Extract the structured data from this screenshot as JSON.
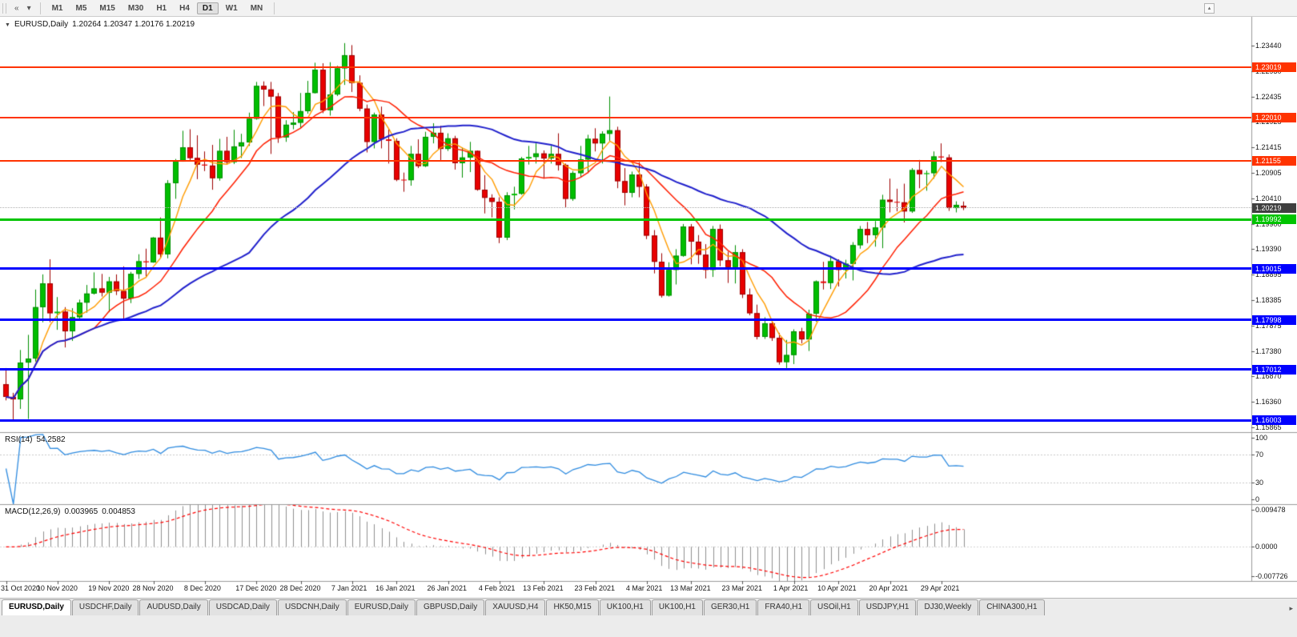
{
  "toolbar": {
    "left_icons": [
      {
        "name": "charts-toolbar-icon",
        "glyph": "«"
      },
      {
        "name": "chart-type-dropdown-icon",
        "glyph": "▾"
      }
    ],
    "timeframes": [
      {
        "label": "M1"
      },
      {
        "label": "M5"
      },
      {
        "label": "M15"
      },
      {
        "label": "M30"
      },
      {
        "label": "H1"
      },
      {
        "label": "H4"
      },
      {
        "label": "D1",
        "active": true
      },
      {
        "label": "W1"
      },
      {
        "label": "MN"
      }
    ],
    "overflow_glyph": "▴"
  },
  "chart": {
    "title_caret_glyph": "▼",
    "symbol_title": "EURUSD,Daily",
    "ohlc_text": "1.20264 1.20347 1.20176 1.20219",
    "price_axis_labels": [
      "1.23440",
      "1.22930",
      "1.22435",
      "1.21925",
      "1.21415",
      "1.20905",
      "1.20410",
      "1.19900",
      "1.19390",
      "1.18895",
      "1.18385",
      "1.17875",
      "1.17380",
      "1.16870",
      "1.16360",
      "1.15865"
    ],
    "date_axis_labels": [
      {
        "label": "31 Oct 2020",
        "i": 0
      },
      {
        "label": "10 Nov 2020",
        "i": 7
      },
      {
        "label": "19 Nov 2020",
        "i": 14
      },
      {
        "label": "28 Nov 2020",
        "i": 20
      },
      {
        "label": "8 Dec 2020",
        "i": 27
      },
      {
        "label": "17 Dec 2020",
        "i": 34
      },
      {
        "label": "28 Dec 2020",
        "i": 40
      },
      {
        "label": "7 Jan 2021",
        "i": 47
      },
      {
        "label": "16 Jan 2021",
        "i": 53
      },
      {
        "label": "26 Jan 2021",
        "i": 60
      },
      {
        "label": "4 Feb 2021",
        "i": 67
      },
      {
        "label": "13 Feb 2021",
        "i": 73
      },
      {
        "label": "23 Feb 2021",
        "i": 80
      },
      {
        "label": "4 Mar 2021",
        "i": 87
      },
      {
        "label": "13 Mar 2021",
        "i": 93
      },
      {
        "label": "23 Mar 2021",
        "i": 100
      },
      {
        "label": "1 Apr 2021",
        "i": 107
      },
      {
        "label": "10 Apr 2021",
        "i": 113
      },
      {
        "label": "20 Apr 2021",
        "i": 120
      },
      {
        "label": "29 Apr 2021",
        "i": 127
      }
    ],
    "hlines": [
      {
        "price": 1.23019,
        "label": "1.23019",
        "color": "#FF3300",
        "thickness": 2
      },
      {
        "price": 1.2201,
        "label": "1.22010",
        "color": "#FF3300",
        "thickness": 2
      },
      {
        "price": 1.21155,
        "label": "1.21155",
        "color": "#FF3300",
        "thickness": 2
      },
      {
        "price": 1.19992,
        "label": "1.19992",
        "color": "#00C400",
        "thickness": 3
      },
      {
        "price": 1.19015,
        "label": "1.19015",
        "color": "#0000FF",
        "thickness": 3
      },
      {
        "price": 1.17998,
        "label": "1.17998",
        "color": "#0000FF",
        "thickness": 3
      },
      {
        "price": 1.17012,
        "label": "1.17012",
        "color": "#0000FF",
        "thickness": 3
      },
      {
        "price": 1.16003,
        "label": "1.16003",
        "color": "#0000FF",
        "thickness": 3
      }
    ],
    "current_price": {
      "price": 1.20219,
      "label": "1.20219",
      "tag_color": "#3F3F3F",
      "line_color": "#B3B3B3"
    }
  },
  "chart_data": {
    "type": "candlestick",
    "symbol": "EURUSD",
    "timeframe": "Daily",
    "x_range": [
      "31 Oct 2020",
      "29 Apr 2021"
    ],
    "price_range": [
      1.15865,
      1.2344
    ],
    "up_color": "#00BE00",
    "up_border": "#008F00",
    "down_color": "#E80000",
    "down_border": "#9E0000",
    "moving_averages": [
      {
        "name": "ma-fast-orange",
        "period": 5,
        "color": "#FF9C00",
        "width": 1.4
      },
      {
        "name": "ma-mid-red",
        "period": 13,
        "color": "#FF1E00",
        "width": 1.5
      },
      {
        "name": "ma-slow-blue",
        "period": 34,
        "color": "#2020CC",
        "width": 2
      }
    ],
    "candles_ohlc": [
      [
        1.1672,
        1.1704,
        1.164,
        1.1647
      ],
      [
        1.1647,
        1.1655,
        1.16,
        1.1642
      ],
      [
        1.1642,
        1.174,
        1.1623,
        1.1715
      ],
      [
        1.1715,
        1.177,
        1.1603,
        1.1723
      ],
      [
        1.1723,
        1.186,
        1.1717,
        1.1825
      ],
      [
        1.1825,
        1.189,
        1.1795,
        1.1872
      ],
      [
        1.1872,
        1.192,
        1.1795,
        1.1813
      ],
      [
        1.1813,
        1.1845,
        1.178,
        1.1816
      ],
      [
        1.1816,
        1.1825,
        1.1745,
        1.1777
      ],
      [
        1.1777,
        1.1823,
        1.1758,
        1.1805
      ],
      [
        1.1805,
        1.184,
        1.1799,
        1.1834
      ],
      [
        1.1834,
        1.1869,
        1.1814,
        1.1852
      ],
      [
        1.1852,
        1.1894,
        1.185,
        1.1862
      ],
      [
        1.1862,
        1.1891,
        1.1846,
        1.1854
      ],
      [
        1.1854,
        1.1885,
        1.1815,
        1.1876
      ],
      [
        1.1876,
        1.189,
        1.1849,
        1.1857
      ],
      [
        1.1857,
        1.1906,
        1.18,
        1.1842
      ],
      [
        1.1842,
        1.1895,
        1.1833,
        1.1891
      ],
      [
        1.1891,
        1.193,
        1.1881,
        1.1916
      ],
      [
        1.1916,
        1.1941,
        1.1886,
        1.1914
      ],
      [
        1.1914,
        1.1964,
        1.1913,
        1.1963
      ],
      [
        1.1963,
        1.2003,
        1.1923,
        1.193
      ],
      [
        1.193,
        1.2077,
        1.1922,
        1.2071
      ],
      [
        1.2071,
        1.2119,
        1.204,
        1.2115
      ],
      [
        1.2115,
        1.2175,
        1.2114,
        1.2142
      ],
      [
        1.2142,
        1.2178,
        1.2116,
        1.2121
      ],
      [
        1.2121,
        1.2166,
        1.2079,
        1.2108
      ],
      [
        1.2108,
        1.2134,
        1.2095,
        1.2106
      ],
      [
        1.2106,
        1.2147,
        1.2058,
        1.2081
      ],
      [
        1.2081,
        1.2159,
        1.2076,
        1.2135
      ],
      [
        1.2135,
        1.2163,
        1.2109,
        1.2113
      ],
      [
        1.2113,
        1.2177,
        1.2109,
        1.2144
      ],
      [
        1.2144,
        1.2169,
        1.2121,
        1.2152
      ],
      [
        1.2152,
        1.2211,
        1.2145,
        1.2199
      ],
      [
        1.2199,
        1.2272,
        1.2197,
        1.2264
      ],
      [
        1.2264,
        1.2273,
        1.2224,
        1.2257
      ],
      [
        1.2257,
        1.2272,
        1.2129,
        1.2243
      ],
      [
        1.2243,
        1.225,
        1.2151,
        1.2162
      ],
      [
        1.2162,
        1.2196,
        1.2153,
        1.2187
      ],
      [
        1.2187,
        1.2212,
        1.2178,
        1.2191
      ],
      [
        1.2191,
        1.225,
        1.2181,
        1.2214
      ],
      [
        1.2214,
        1.2274,
        1.2209,
        1.225
      ],
      [
        1.225,
        1.231,
        1.2249,
        1.2296
      ],
      [
        1.2296,
        1.2309,
        1.221,
        1.2216
      ],
      [
        1.2216,
        1.2311,
        1.2205,
        1.2247
      ],
      [
        1.2247,
        1.2304,
        1.2244,
        1.2299
      ],
      [
        1.2299,
        1.2349,
        1.2266,
        1.2325
      ],
      [
        1.2325,
        1.2345,
        1.2252,
        1.227
      ],
      [
        1.227,
        1.2285,
        1.2214,
        1.2219
      ],
      [
        1.2219,
        1.2227,
        1.2132,
        1.2153
      ],
      [
        1.2153,
        1.2211,
        1.214,
        1.2207
      ],
      [
        1.2207,
        1.2223,
        1.214,
        1.2158
      ],
      [
        1.2158,
        1.2178,
        1.211,
        1.2155
      ],
      [
        1.2155,
        1.216,
        1.2075,
        1.2078
      ],
      [
        1.2078,
        1.2092,
        1.2054,
        1.2077
      ],
      [
        1.2077,
        1.2145,
        1.2066,
        1.2129
      ],
      [
        1.2129,
        1.2158,
        1.2101,
        1.2105
      ],
      [
        1.2105,
        1.2173,
        1.2103,
        1.2163
      ],
      [
        1.2163,
        1.219,
        1.215,
        1.2171
      ],
      [
        1.2171,
        1.2185,
        1.2116,
        1.2139
      ],
      [
        1.2139,
        1.217,
        1.2135,
        1.216
      ],
      [
        1.216,
        1.2165,
        1.2098,
        1.2111
      ],
      [
        1.2111,
        1.2142,
        1.2082,
        1.2122
      ],
      [
        1.2122,
        1.2153,
        1.2093,
        1.2135
      ],
      [
        1.2135,
        1.2136,
        1.2056,
        1.2058
      ],
      [
        1.2058,
        1.2087,
        1.2011,
        1.2042
      ],
      [
        1.2042,
        1.2049,
        1.2003,
        1.2034
      ],
      [
        1.2034,
        1.2043,
        1.1952,
        1.1963
      ],
      [
        1.1963,
        1.2053,
        1.1958,
        1.2047
      ],
      [
        1.2047,
        1.2064,
        1.2019,
        1.205
      ],
      [
        1.205,
        1.2123,
        1.2048,
        1.212
      ],
      [
        1.212,
        1.2145,
        1.2108,
        1.2123
      ],
      [
        1.2123,
        1.215,
        1.211,
        1.213
      ],
      [
        1.213,
        1.2136,
        1.208,
        1.212
      ],
      [
        1.212,
        1.2145,
        1.211,
        1.2129
      ],
      [
        1.2129,
        1.217,
        1.2096,
        1.2107
      ],
      [
        1.2107,
        1.211,
        1.2023,
        1.204
      ],
      [
        1.204,
        1.2095,
        1.2036,
        1.2091
      ],
      [
        1.2091,
        1.2145,
        1.2082,
        1.2118
      ],
      [
        1.2118,
        1.2167,
        1.2091,
        1.2159
      ],
      [
        1.2159,
        1.218,
        1.2134,
        1.215
      ],
      [
        1.215,
        1.2174,
        1.211,
        1.2169
      ],
      [
        1.2169,
        1.2243,
        1.2155,
        1.2176
      ],
      [
        1.2176,
        1.2183,
        1.2061,
        1.2075
      ],
      [
        1.2075,
        1.2101,
        1.2027,
        1.2052
      ],
      [
        1.2052,
        1.2094,
        1.2043,
        1.2088
      ],
      [
        1.2088,
        1.2113,
        1.2043,
        1.2064
      ],
      [
        1.2064,
        1.2069,
        1.196,
        1.1967
      ],
      [
        1.1967,
        1.1978,
        1.1892,
        1.1915
      ],
      [
        1.1915,
        1.1932,
        1.1844,
        1.1848
      ],
      [
        1.1848,
        1.1914,
        1.1846,
        1.1899
      ],
      [
        1.1899,
        1.194,
        1.187,
        1.1927
      ],
      [
        1.1927,
        1.199,
        1.1925,
        1.1985
      ],
      [
        1.1985,
        1.199,
        1.191,
        1.1955
      ],
      [
        1.1955,
        1.1968,
        1.1911,
        1.1929
      ],
      [
        1.1929,
        1.195,
        1.1882,
        1.1899
      ],
      [
        1.1899,
        1.1986,
        1.1885,
        1.198
      ],
      [
        1.198,
        1.1989,
        1.1906,
        1.1918
      ],
      [
        1.1918,
        1.1935,
        1.1873,
        1.1904
      ],
      [
        1.1904,
        1.1948,
        1.1872,
        1.1934
      ],
      [
        1.1934,
        1.194,
        1.1843,
        1.185
      ],
      [
        1.185,
        1.1862,
        1.1809,
        1.1813
      ],
      [
        1.1813,
        1.183,
        1.1761,
        1.1766
      ],
      [
        1.1766,
        1.1805,
        1.1762,
        1.1793
      ],
      [
        1.1793,
        1.1797,
        1.1758,
        1.1764
      ],
      [
        1.1764,
        1.1774,
        1.1711,
        1.1716
      ],
      [
        1.1716,
        1.176,
        1.1704,
        1.173
      ],
      [
        1.173,
        1.1781,
        1.1712,
        1.1777
      ],
      [
        1.1777,
        1.1784,
        1.1753,
        1.1761
      ],
      [
        1.1761,
        1.182,
        1.1738,
        1.1812
      ],
      [
        1.1812,
        1.1878,
        1.1796,
        1.1876
      ],
      [
        1.1876,
        1.1915,
        1.186,
        1.1873
      ],
      [
        1.1873,
        1.1927,
        1.1861,
        1.1916
      ],
      [
        1.1916,
        1.192,
        1.1866,
        1.1899
      ],
      [
        1.1899,
        1.1919,
        1.1882,
        1.1911
      ],
      [
        1.1911,
        1.1954,
        1.1878,
        1.1948
      ],
      [
        1.1948,
        1.1986,
        1.1941,
        1.198
      ],
      [
        1.198,
        1.1994,
        1.1952,
        1.1968
      ],
      [
        1.1968,
        1.1996,
        1.1945,
        1.1983
      ],
      [
        1.1983,
        1.2048,
        1.1942,
        1.2038
      ],
      [
        1.2038,
        1.208,
        1.2013,
        1.2034
      ],
      [
        1.2034,
        1.206,
        1.2015,
        1.2033
      ],
      [
        1.2033,
        1.207,
        1.1993,
        1.2015
      ],
      [
        1.2015,
        1.2101,
        1.2012,
        1.2097
      ],
      [
        1.2097,
        1.2117,
        1.2061,
        1.2089
      ],
      [
        1.2089,
        1.2096,
        1.2056,
        1.2091
      ],
      [
        1.2091,
        1.2134,
        1.208,
        1.2124
      ],
      [
        1.2124,
        1.215,
        1.2113,
        1.2122
      ],
      [
        1.2122,
        1.2128,
        1.2016,
        1.2022
      ],
      [
        1.2022,
        1.2035,
        1.2013,
        1.2028
      ],
      [
        1.20264,
        1.20347,
        1.20176,
        1.20219
      ]
    ],
    "rsi": {
      "title": "RSI(14)",
      "period": 14,
      "current": "54.2582",
      "levels": [
        70,
        30
      ],
      "color": "#2E8BE0",
      "axis_labels": [
        {
          "v": 100,
          "label": "100"
        },
        {
          "v": 70,
          "label": "70"
        },
        {
          "v": 30,
          "label": "30"
        },
        {
          "v": 0,
          "label": "0"
        }
      ]
    },
    "macd": {
      "title": "MACD(12,26,9)",
      "fast": 12,
      "slow": 26,
      "signal": 9,
      "current_macd": "0.003965",
      "current_signal": "0.004853",
      "range": [
        -0.007726,
        0.009478
      ],
      "histogram_color": "#8F8F8F",
      "signal_color": "#FF0000",
      "axis_labels": [
        {
          "v": 0.009478,
          "label": "0.009478"
        },
        {
          "v": 0,
          "label": "0.0000"
        },
        {
          "v": -0.007726,
          "label": "-0.007726"
        }
      ]
    }
  },
  "tabs": {
    "items": [
      {
        "label": "EURUSD,Daily",
        "active": true
      },
      {
        "label": "USDCHF,Daily"
      },
      {
        "label": "AUDUSD,Daily"
      },
      {
        "label": "USDCAD,Daily"
      },
      {
        "label": "USDCNH,Daily"
      },
      {
        "label": "EURUSD,Daily"
      },
      {
        "label": "GBPUSD,Daily"
      },
      {
        "label": "XAUUSD,H4"
      },
      {
        "label": "HK50,M15"
      },
      {
        "label": "UK100,H1"
      },
      {
        "label": "UK100,H1"
      },
      {
        "label": "GER30,H1"
      },
      {
        "label": "FRA40,H1"
      },
      {
        "label": "USOil,H1"
      },
      {
        "label": "USDJPY,H1"
      },
      {
        "label": "DJ30,Weekly"
      },
      {
        "label": "CHINA300,H1"
      }
    ],
    "scroll_right_glyph": "▸"
  }
}
